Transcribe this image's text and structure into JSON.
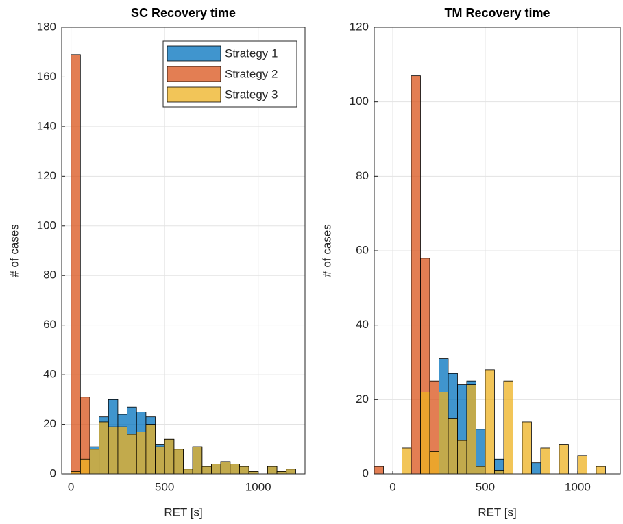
{
  "chart_data": [
    {
      "type": "histogram",
      "title": "SC Recovery time",
      "xlabel": "RET [s]",
      "ylabel": "# of cases",
      "bins": [
        0,
        50,
        100,
        150,
        200,
        250,
        300,
        350,
        400,
        450,
        500,
        550,
        600,
        650,
        700,
        750,
        800,
        850,
        900,
        950,
        1000,
        1050,
        1100,
        1150,
        1200
      ],
      "series": [
        {
          "name": "Strategy 1",
          "color": "#0072bd",
          "values": [
            0,
            0,
            11,
            23,
            30,
            24,
            27,
            25,
            23,
            12,
            14,
            10,
            2,
            11,
            3,
            4,
            5,
            4,
            3,
            1,
            0,
            3,
            1,
            2
          ]
        },
        {
          "name": "Strategy 2",
          "color": "#d95319",
          "values": [
            169,
            31,
            0,
            0,
            0,
            0,
            0,
            0,
            0,
            0,
            0,
            0,
            0,
            0,
            0,
            0,
            0,
            0,
            0,
            0,
            0,
            0,
            0,
            0
          ]
        },
        {
          "name": "Strategy 3",
          "color": "#edb120",
          "values": [
            1,
            6,
            10,
            21,
            19,
            19,
            16,
            17,
            20,
            11,
            14,
            10,
            2,
            11,
            3,
            4,
            5,
            4,
            3,
            1,
            0,
            3,
            1,
            2
          ]
        }
      ],
      "xlim": [
        -50,
        1250
      ],
      "ylim": [
        0,
        180
      ],
      "xticks": [
        0,
        500,
        1000
      ],
      "yticks": [
        0,
        20,
        40,
        60,
        80,
        100,
        120,
        140,
        160,
        180
      ],
      "grid": true,
      "legend": "upper right"
    },
    {
      "type": "histogram",
      "title": "TM Recovery time",
      "xlabel": "RET [s]",
      "ylabel": "# of cases",
      "bins": [
        -100,
        -50,
        0,
        50,
        100,
        150,
        200,
        250,
        300,
        350,
        400,
        450,
        500,
        550,
        600,
        650,
        700,
        750,
        800,
        850,
        900,
        950,
        1000,
        1050,
        1100,
        1150,
        1200
      ],
      "series": [
        {
          "name": "Strategy 1",
          "color": "#0072bd",
          "values": [
            0,
            0,
            0,
            0,
            0,
            0,
            0,
            31,
            27,
            24,
            25,
            12,
            0,
            4,
            0,
            0,
            0,
            3,
            0,
            0,
            0,
            0,
            0,
            0,
            0,
            0
          ]
        },
        {
          "name": "Strategy 2",
          "color": "#d95319",
          "values": [
            2,
            0,
            0,
            0,
            107,
            58,
            25,
            0,
            0,
            0,
            0,
            0,
            0,
            0,
            0,
            0,
            0,
            0,
            0,
            0,
            0,
            0,
            0,
            0,
            0,
            0
          ]
        },
        {
          "name": "Strategy 3",
          "color": "#edb120",
          "values": [
            0,
            0,
            0,
            7,
            0,
            22,
            6,
            22,
            15,
            9,
            24,
            2,
            28,
            1,
            25,
            0,
            14,
            0,
            7,
            0,
            8,
            0,
            5,
            0,
            2,
            0
          ]
        }
      ],
      "xlim": [
        -100,
        1230
      ],
      "ylim": [
        0,
        120
      ],
      "xticks": [
        0,
        500,
        1000
      ],
      "yticks": [
        0,
        20,
        40,
        60,
        80,
        100,
        120
      ],
      "grid": true
    }
  ]
}
